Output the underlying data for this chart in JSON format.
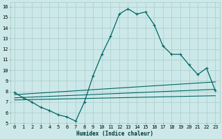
{
  "xlabel": "Humidex (Indice chaleur)",
  "bg_color": "#cce8e8",
  "grid_color": "#aacccc",
  "line_color": "#006666",
  "xlim": [
    -0.5,
    23.5
  ],
  "ylim": [
    5,
    16.4
  ],
  "x_ticks": [
    0,
    1,
    2,
    3,
    4,
    5,
    6,
    7,
    8,
    9,
    10,
    11,
    12,
    13,
    14,
    15,
    16,
    17,
    18,
    19,
    20,
    21,
    22,
    23
  ],
  "y_ticks": [
    5,
    6,
    7,
    8,
    9,
    10,
    11,
    12,
    13,
    14,
    15,
    16
  ],
  "main_line_x": [
    0,
    1,
    2,
    3,
    4,
    5,
    6,
    7,
    8,
    9,
    10,
    11,
    12,
    13,
    14,
    15,
    16,
    17,
    18,
    19,
    20,
    21,
    22,
    23
  ],
  "main_line_y": [
    7.9,
    7.4,
    7.0,
    6.5,
    6.2,
    5.8,
    5.6,
    5.2,
    7.0,
    9.5,
    11.5,
    13.2,
    15.3,
    15.8,
    15.3,
    15.5,
    14.3,
    12.3,
    11.5,
    11.5,
    10.5,
    9.6,
    10.2,
    8.1
  ],
  "ref_line1_x": [
    0,
    23
  ],
  "ref_line1_y": [
    7.7,
    8.9
  ],
  "ref_line2_x": [
    0,
    23
  ],
  "ref_line2_y": [
    7.4,
    8.2
  ],
  "ref_line3_x": [
    0,
    23
  ],
  "ref_line3_y": [
    7.2,
    7.6
  ],
  "xlabel_fontsize": 5.5,
  "tick_fontsize": 5
}
